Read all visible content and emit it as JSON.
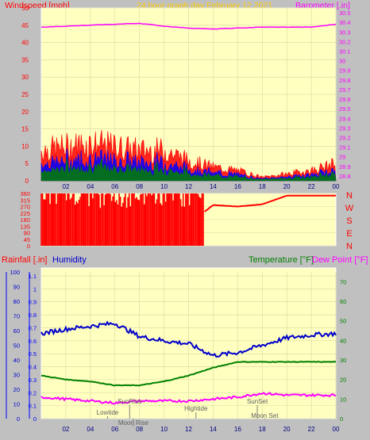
{
  "header": {
    "left_label": "Windspeed [mph]",
    "title": "24 hour graph day   February 12 2021",
    "right_label": "Barometer [.in]"
  },
  "colors": {
    "panel_bg": "#ffffc0",
    "wind": "#ff0000",
    "gust": "#0000ff",
    "avg": "#008000",
    "barometer": "#ff00ff",
    "humidity": "#0000cc",
    "temperature": "#008000",
    "dewpoint": "#ff00ff",
    "rain": "#0000ff"
  },
  "axes": {
    "time_ticks": [
      "02",
      "04",
      "06",
      "08",
      "10",
      "12",
      "14",
      "16",
      "18",
      "20",
      "22",
      "00"
    ],
    "wind_ticks": [
      "0",
      "5",
      "10",
      "15",
      "20",
      "25",
      "30",
      "35",
      "40",
      "45",
      "50"
    ],
    "baro_ticks": [
      "28.8",
      "28.9",
      "29",
      "29.1",
      "29.2",
      "29.3",
      "29.4",
      "29.5",
      "29.6",
      "29.7",
      "29.8",
      "29.9",
      "30",
      "30.1",
      "30.2",
      "30.3",
      "30.4",
      "30.5"
    ],
    "dir_ticks": [
      "0",
      "90",
      "180",
      "270",
      "360"
    ],
    "dir_ticks_middle": [
      "45",
      "135",
      "225",
      "315"
    ],
    "compass": [
      "N",
      "W",
      "S",
      "E",
      "N"
    ],
    "humidity_ticks": [
      "0",
      "10",
      "20",
      "30",
      "40",
      "50",
      "60",
      "70",
      "80",
      "90",
      "100"
    ],
    "rain_ticks": [
      "0",
      "0.1",
      "0.2",
      "0.3",
      "0.4",
      "0.5",
      "0.6",
      "0.7",
      "0.8",
      "0.9",
      "1",
      "1.1"
    ],
    "temp_ticks": [
      "0",
      "10",
      "20",
      "30",
      "40",
      "50",
      "60",
      "70"
    ]
  },
  "bottom_header": {
    "rainfall": "Rainfall [.in]",
    "humidity": "Humidity",
    "temperature": "Temperature [°F]",
    "dewpoint": "Dew Point [°F]"
  },
  "events": {
    "sunrise": "SunRise",
    "lowtide": "Lowtide",
    "moonrise": "Moon Rise",
    "hightide": "Hightide",
    "sunset": "SunSet",
    "moonset": "Moon Set"
  },
  "chart_data": [
    {
      "type": "line",
      "title": "24 hour graph day   February 12 2021",
      "ylabel": "Windspeed [mph]",
      "y2label": "Barometer [.in]",
      "x": [
        "00",
        "02",
        "04",
        "06",
        "08",
        "10",
        "12",
        "14",
        "16",
        "18",
        "20",
        "22",
        "00"
      ],
      "ylim": [
        0,
        50
      ],
      "y2lim": [
        28.75,
        30.55
      ],
      "series": [
        {
          "name": "Windspeed [mph]",
          "values": [
            9,
            10,
            11,
            10,
            9,
            9,
            6,
            4,
            3,
            1,
            2,
            3,
            5
          ]
        },
        {
          "name": "Barometer [.in]",
          "values": [
            30.35,
            30.36,
            30.37,
            30.38,
            30.39,
            30.36,
            30.34,
            30.33,
            30.34,
            30.35,
            30.35,
            30.35,
            30.38
          ]
        }
      ]
    },
    {
      "type": "line",
      "title": "",
      "ylabel": "",
      "x": [
        "00",
        "02",
        "04",
        "06",
        "08",
        "10",
        "12",
        "14",
        "16",
        "18",
        "20",
        "22",
        "00"
      ],
      "ylim": [
        0,
        360
      ],
      "series": [
        {
          "name": "",
          "values": [
            200,
            180,
            160,
            180,
            190,
            170,
            150,
            280,
            270,
            285,
            345,
            345,
            345
          ]
        }
      ]
    },
    {
      "type": "line",
      "x": [
        "00",
        "02",
        "04",
        "06",
        "08",
        "10",
        "12",
        "14",
        "16",
        "18",
        "20",
        "22",
        "00"
      ],
      "ylim": [
        0,
        100
      ],
      "y2lim": [
        0,
        75
      ],
      "series": [
        {
          "name": "Humidity",
          "values": [
            58,
            61,
            63,
            65,
            56,
            53,
            51,
            43,
            45,
            50,
            55,
            57,
            58
          ]
        },
        {
          "name": "Temperature [°F]",
          "values": [
            22,
            20,
            19,
            17,
            17,
            19,
            22,
            26,
            29,
            29,
            29,
            29,
            29
          ]
        },
        {
          "name": "Dew Point [°F]",
          "values": [
            11,
            10,
            9,
            8,
            9,
            9,
            9,
            10,
            11,
            13,
            12,
            12,
            12
          ]
        },
        {
          "name": "Rainfall [.in]",
          "values": [
            0,
            0,
            0,
            0,
            0,
            0,
            0,
            0,
            0,
            0,
            0,
            0,
            0
          ]
        }
      ]
    }
  ]
}
